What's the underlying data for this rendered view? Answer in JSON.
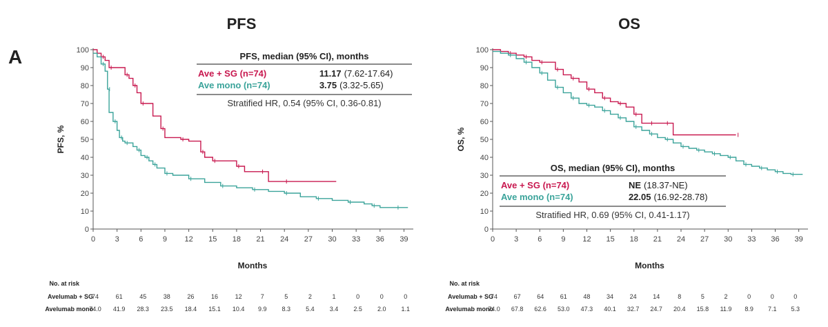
{
  "panel_label": "A",
  "colors": {
    "combo": "#c8184f",
    "mono": "#3aa39a",
    "axis": "#555555",
    "text": "#222222"
  },
  "chart_data": [
    {
      "id": "pfs",
      "type": "line",
      "title": "PFS",
      "xlabel": "Months",
      "ylabel": "PFS, %",
      "xlim": [
        0,
        40
      ],
      "ylim": [
        0,
        100
      ],
      "xticks": [
        0,
        3,
        6,
        9,
        12,
        15,
        18,
        21,
        24,
        27,
        30,
        33,
        36,
        39
      ],
      "yticks": [
        0,
        10,
        20,
        30,
        40,
        50,
        60,
        70,
        80,
        90,
        100
      ],
      "series": [
        {
          "name": "Ave + SG (n=74)",
          "color": "#c8184f",
          "x": [
            0,
            0.5,
            1,
            1.5,
            2,
            3,
            4,
            4.5,
            5,
            5.5,
            6,
            7.5,
            8.5,
            9,
            11,
            12,
            13.5,
            14,
            15,
            17,
            18,
            19,
            21,
            22,
            24,
            30.5
          ],
          "y": [
            100,
            98,
            96,
            94,
            90,
            90,
            86,
            84,
            80,
            76,
            70,
            63,
            56,
            51,
            50,
            49,
            43,
            40,
            38,
            38,
            35,
            32,
            32,
            26.5,
            26.5,
            26.5
          ]
        },
        {
          "name": "Ave mono (n=74)",
          "color": "#3aa39a",
          "x": [
            0,
            0.5,
            1,
            1.5,
            1.8,
            2,
            2.5,
            3,
            3.3,
            3.7,
            4,
            5,
            5.5,
            6,
            6.5,
            7,
            7.5,
            8,
            9,
            10,
            12,
            14,
            16,
            18,
            20,
            22,
            24,
            26,
            28,
            30,
            32,
            34,
            35,
            36,
            38,
            39.5
          ],
          "y": [
            98,
            96,
            92,
            88,
            78,
            65,
            60,
            55,
            51,
            49,
            48,
            46,
            44,
            41,
            40,
            38,
            36,
            34,
            31,
            30,
            28,
            26,
            24,
            23,
            22,
            21,
            20,
            18,
            17,
            16,
            15,
            14,
            13,
            12,
            12,
            12
          ]
        }
      ],
      "legend": {
        "header": "PFS, median (95% CI), months",
        "rows": [
          {
            "label": "Ave + SG (n=74)",
            "median": "11.17",
            "ci": "(7.62-17.64)"
          },
          {
            "label": "Ave mono (n=74)",
            "median": "3.75",
            "ci": "(3.32-5.65)"
          }
        ],
        "footer": "Stratified HR, 0.54 (95% CI, 0.36-0.81)"
      },
      "risk": {
        "header": "No. at risk",
        "rows": [
          {
            "label": "Avelumab + SG",
            "values": [
              "74",
              "61",
              "45",
              "38",
              "26",
              "16",
              "12",
              "7",
              "5",
              "2",
              "1",
              "0",
              "0",
              "0"
            ]
          },
          {
            "label": "Avelumab mono",
            "values": [
              "74.0",
              "41.9",
              "28.3",
              "23.5",
              "18.4",
              "15.1",
              "10.4",
              "9.9",
              "8.3",
              "5.4",
              "3.4",
              "2.5",
              "2.0",
              "1.1"
            ]
          }
        ]
      }
    },
    {
      "id": "os",
      "type": "line",
      "title": "OS",
      "xlabel": "Months",
      "ylabel": "OS, %",
      "xlim": [
        0,
        40
      ],
      "ylim": [
        0,
        100
      ],
      "xticks": [
        0,
        3,
        6,
        9,
        12,
        15,
        18,
        21,
        24,
        27,
        30,
        33,
        36,
        39
      ],
      "yticks": [
        0,
        10,
        20,
        30,
        40,
        50,
        60,
        70,
        80,
        90,
        100
      ],
      "series": [
        {
          "name": "Ave + SG (n=74)",
          "color": "#c8184f",
          "x": [
            0,
            1,
            2,
            3,
            4,
            5,
            6,
            7,
            8,
            9,
            10,
            11,
            12,
            13,
            14,
            15,
            16,
            17,
            18,
            19,
            20,
            21,
            22,
            23,
            31
          ],
          "y": [
            100,
            99,
            98,
            97,
            96,
            94,
            93,
            93,
            89,
            86,
            84,
            82,
            78,
            76,
            73,
            71,
            70,
            68,
            64,
            59,
            59,
            59,
            59,
            52.5,
            52.5
          ]
        },
        {
          "name": "Ave mono (n=74)",
          "color": "#3aa39a",
          "x": [
            0,
            1,
            2,
            3,
            4,
            5,
            6,
            7,
            8,
            9,
            10,
            11,
            12,
            13,
            14,
            15,
            16,
            17,
            18,
            19,
            20,
            21,
            22,
            23,
            24,
            25,
            26,
            27,
            28,
            29,
            30,
            31,
            32,
            33,
            34,
            35,
            36,
            37,
            38,
            39.5
          ],
          "y": [
            99,
            98,
            97,
            95,
            93,
            90,
            87,
            83,
            79,
            76,
            73,
            70,
            69,
            68,
            66,
            64,
            62,
            60,
            57,
            55,
            53,
            51,
            50,
            48,
            46,
            45,
            44,
            43,
            42,
            41,
            40,
            38,
            36,
            35,
            34,
            33,
            32,
            31,
            30.5,
            30.5
          ]
        }
      ],
      "legend": {
        "header": "OS, median (95% CI), months",
        "rows": [
          {
            "label": "Ave + SG (n=74)",
            "median": "NE",
            "ci": "(18.37-NE)"
          },
          {
            "label": "Ave mono (n=74)",
            "median": "22.05",
            "ci": "(16.92-28.78)"
          }
        ],
        "footer": "Stratified HR, 0.69 (95% CI, 0.41-1.17)"
      },
      "risk": {
        "header": "No. at risk",
        "rows": [
          {
            "label": "Avelumab + SG",
            "values": [
              "74",
              "67",
              "64",
              "61",
              "48",
              "34",
              "24",
              "14",
              "8",
              "5",
              "2",
              "0",
              "0",
              "0"
            ]
          },
          {
            "label": "Avelumab mono",
            "values": [
              "74.0",
              "67.8",
              "62.6",
              "53.0",
              "47.3",
              "40.1",
              "32.7",
              "24.7",
              "20.4",
              "15.8",
              "11.9",
              "8.9",
              "7.1",
              "5.3"
            ]
          }
        ]
      }
    }
  ]
}
